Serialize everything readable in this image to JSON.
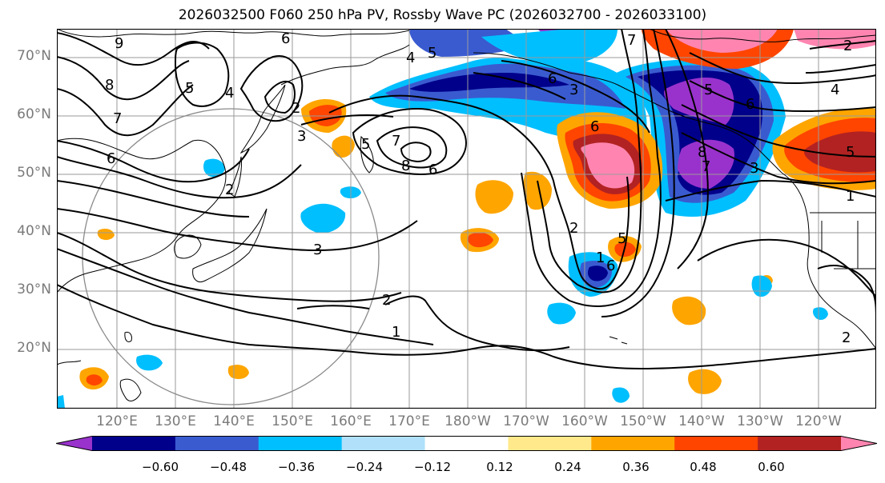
{
  "title": "2026032500 F060 250 hPa PV, Rossby Wave PC (2026032700 - 2026033100)",
  "lat_labels": [
    "70°N",
    "60°N",
    "50°N",
    "40°N",
    "30°N",
    "20°N"
  ],
  "lon_labels": [
    "120°E",
    "130°E",
    "140°E",
    "150°E",
    "160°E",
    "170°E",
    "180°W",
    "170°W",
    "160°W",
    "150°W",
    "140°W",
    "130°W",
    "120°W"
  ],
  "colorbar": {
    "colors": [
      "#9932cc",
      "#00008b",
      "#3a5bd0",
      "#00bfff",
      "#b0e0fa",
      "#ffffff",
      "#ffe98a",
      "#ffa500",
      "#ff4500",
      "#b22222",
      "#ff85b0"
    ],
    "tick_labels": [
      "−0.60",
      "−0.48",
      "−0.36",
      "−0.24",
      "−0.12",
      "0.12",
      "0.24",
      "0.36",
      "0.48",
      "0.60"
    ]
  },
  "contour_labels": [
    "9",
    "8",
    "7",
    "6",
    "5",
    "4",
    "3",
    "2",
    "1",
    "2",
    "3",
    "5",
    "6",
    "7",
    "8",
    "6",
    "5",
    "4",
    "3",
    "2",
    "1",
    "6",
    "2",
    "5",
    "6",
    "7",
    "8",
    "6",
    "7",
    "5",
    "4",
    "1",
    "2",
    "3",
    "2",
    "6",
    "5"
  ]
}
